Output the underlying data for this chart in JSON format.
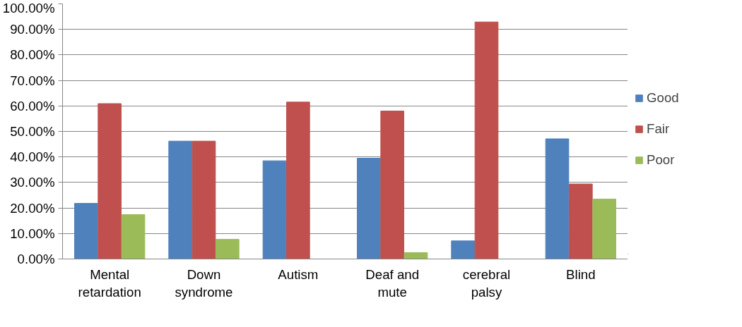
{
  "chart_data": {
    "type": "bar",
    "categories": [
      "Mental retardation",
      "Down syndrome",
      "Autism",
      "Deaf and mute",
      "cerebral palsy",
      "Blind"
    ],
    "series": [
      {
        "name": "Good",
        "color": "#4f81bd",
        "values": [
          21.8,
          46.2,
          38.5,
          39.5,
          7.1,
          47.1
        ]
      },
      {
        "name": "Fair",
        "color": "#c0504d",
        "values": [
          60.9,
          46.2,
          61.5,
          58.0,
          92.9,
          29.4
        ]
      },
      {
        "name": "Poor",
        "color": "#9bbb59",
        "values": [
          17.4,
          7.7,
          0,
          2.5,
          0,
          23.5
        ]
      }
    ],
    "ylim": [
      0,
      100
    ],
    "yticks": [
      {
        "value": 0,
        "label": "0.00%"
      },
      {
        "value": 10,
        "label": "10.00%"
      },
      {
        "value": 20,
        "label": "20.00%"
      },
      {
        "value": 30,
        "label": "30.00%"
      },
      {
        "value": 40,
        "label": "40.00%"
      },
      {
        "value": 50,
        "label": "50.00%"
      },
      {
        "value": 60,
        "label": "60.00%"
      },
      {
        "value": 70,
        "label": "70.00%"
      },
      {
        "value": 80,
        "label": "80.00%"
      },
      {
        "value": 90,
        "label": "90.00%"
      },
      {
        "value": 100,
        "label": "100.00%"
      }
    ],
    "grid": "y",
    "legend": "right"
  }
}
